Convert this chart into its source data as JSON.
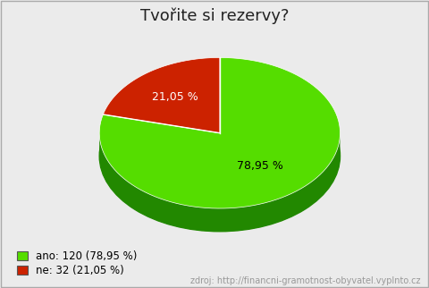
{
  "title": "Tvořite si rezervy?",
  "slices": [
    78.95,
    21.05
  ],
  "labels": [
    "78,95 %",
    "21,05 %"
  ],
  "colors": [
    "#55dd00",
    "#cc2200"
  ],
  "dark_colors": [
    "#228800",
    "#881100"
  ],
  "legend_labels": [
    "ano: 120 (78,95 %)",
    "ne: 32 (21,05 %)"
  ],
  "legend_colors": [
    "#55dd00",
    "#cc2200"
  ],
  "source_text": "zdroj: http://financni-gramotnost-obyvatel.vyplnto.cz",
  "background_color": "#ebebeb",
  "title_fontsize": 13,
  "label_fontsize": 9,
  "legend_fontsize": 8.5,
  "source_fontsize": 7,
  "startangle": 90
}
